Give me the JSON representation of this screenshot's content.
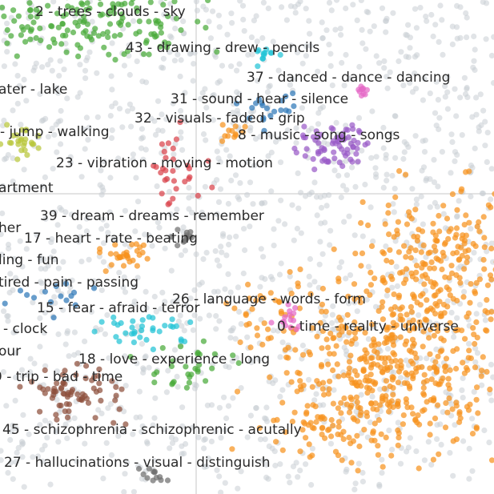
{
  "chart_data": {
    "type": "scatter",
    "annotations": [
      "2 - trees - clouds - sky",
      "43 - drawing - drew - pencils",
      "37 - danced - dance - dancing",
      "ater - lake",
      "31 - sound - hear - silence",
      "32 - visuals - faded - grip",
      "8 - music - song - songs",
      "- jump - walking",
      "23 - vibration - moving - motion",
      "artment",
      "39 - dream - dreams - remember",
      "her",
      "17 - heart - rate - beating",
      "ling - fun",
      "tired - pain - passing",
      "26 - language - words - form",
      "15 - fear - afraid - terror",
      "0 - time - reality - universe",
      "- clock",
      "our",
      "18 - love - experience - long",
      "9 - trip - bad - time",
      "45 - schizophrenia - schizophrenic - acutally",
      "27 - hallucinations - visual - distinguish"
    ]
  }
}
